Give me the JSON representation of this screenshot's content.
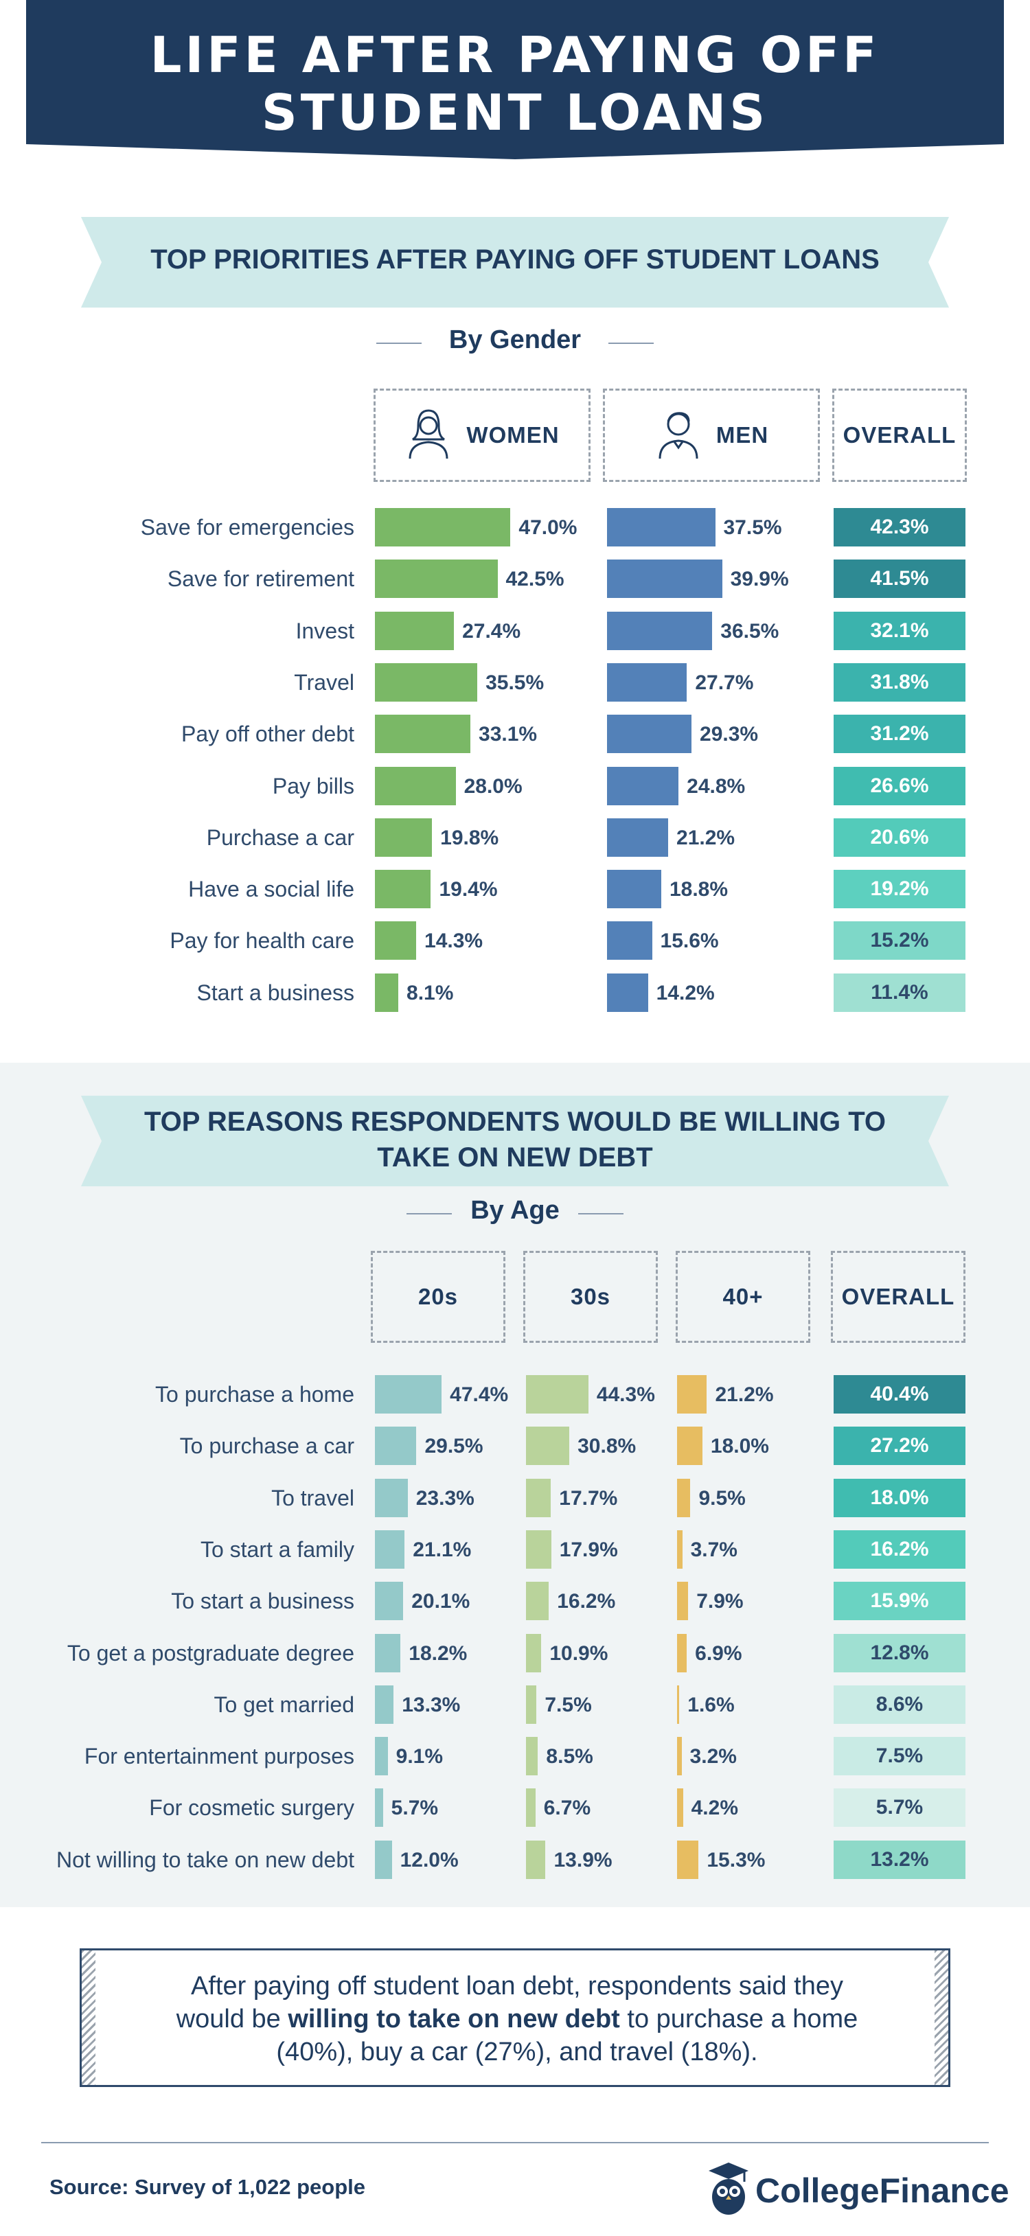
{
  "header": {
    "title": "LIFE AFTER PAYING OFF STUDENT LOANS"
  },
  "colors": {
    "navy": "#1f3b5e",
    "women": "#7ab866",
    "men": "#5381b8",
    "twenties": "#94c9c9",
    "thirties": "#b9d39b",
    "forties": "#e7bd61",
    "ribbon": "#cfeaea"
  },
  "section1": {
    "ribbon": "TOP PRIORITIES AFTER PAYING OFF STUDENT LOANS",
    "subtitle": "By Gender",
    "columns": {
      "women": "WOMEN",
      "men": "MEN",
      "overall": "OVERALL"
    }
  },
  "section2": {
    "ribbon_line1": "TOP REASONS RESPONDENTS WOULD BE WILLING TO",
    "ribbon_line2": "TAKE ON NEW DEBT",
    "subtitle": "By Age",
    "columns": {
      "twenties": "20s",
      "thirties": "30s",
      "forties": "40+",
      "overall": "OVERALL"
    }
  },
  "chart_data": [
    {
      "type": "bar",
      "title": "TOP PRIORITIES AFTER PAYING OFF STUDENT LOANS",
      "subtitle": "By Gender",
      "categories": [
        "Save for emergencies",
        "Save for retirement",
        "Invest",
        "Travel",
        "Pay off other debt",
        "Pay bills",
        "Purchase a car",
        "Have a social life",
        "Pay for health care",
        "Start a business"
      ],
      "series": [
        {
          "name": "WOMEN",
          "values": [
            47.0,
            42.5,
            27.4,
            35.5,
            33.1,
            28.0,
            19.8,
            19.4,
            14.3,
            8.1
          ],
          "labels": [
            "47.0%",
            "42.5%",
            "27.4%",
            "35.5%",
            "33.1%",
            "28.0%",
            "19.8%",
            "19.4%",
            "14.3%",
            "8.1%"
          ]
        },
        {
          "name": "MEN",
          "values": [
            37.5,
            39.9,
            36.5,
            27.7,
            29.3,
            24.8,
            21.2,
            18.8,
            15.6,
            14.2
          ],
          "labels": [
            "37.5%",
            "39.9%",
            "36.5%",
            "27.7%",
            "29.3%",
            "24.8%",
            "21.2%",
            "18.8%",
            "15.6%",
            "14.2%"
          ]
        },
        {
          "name": "OVERALL",
          "values": [
            42.3,
            41.5,
            32.1,
            31.8,
            31.2,
            26.6,
            20.6,
            19.2,
            15.2,
            11.4
          ],
          "labels": [
            "42.3%",
            "41.5%",
            "32.1%",
            "31.8%",
            "31.2%",
            "26.6%",
            "20.6%",
            "19.2%",
            "15.2%",
            "11.4%"
          ]
        }
      ],
      "overall_colors": [
        "#2e8a93",
        "#2e8a93",
        "#3bb3ad",
        "#3bb3ad",
        "#3bb3ad",
        "#40bcb0",
        "#53cbba",
        "#5dd0bf",
        "#7ed8c8",
        "#9fe0d2"
      ]
    },
    {
      "type": "bar",
      "title": "TOP REASONS RESPONDENTS WOULD BE WILLING TO TAKE ON NEW DEBT",
      "subtitle": "By Age",
      "categories": [
        "To purchase a home",
        "To purchase a car",
        "To travel",
        "To start a family",
        "To start a business",
        "To get a postgraduate degree",
        "To get married",
        "For entertainment purposes",
        "For cosmetic surgery",
        "Not willing to take on new debt"
      ],
      "series": [
        {
          "name": "20s",
          "values": [
            47.4,
            29.5,
            23.3,
            21.1,
            20.1,
            18.2,
            13.3,
            9.1,
            5.7,
            12.0
          ],
          "labels": [
            "47.4%",
            "29.5%",
            "23.3%",
            "21.1%",
            "20.1%",
            "18.2%",
            "13.3%",
            "9.1%",
            "5.7%",
            "12.0%"
          ]
        },
        {
          "name": "30s",
          "values": [
            44.3,
            30.8,
            17.7,
            17.9,
            16.2,
            10.9,
            7.5,
            8.5,
            6.7,
            13.9
          ],
          "labels": [
            "44.3%",
            "30.8%",
            "17.7%",
            "17.9%",
            "16.2%",
            "10.9%",
            "7.5%",
            "8.5%",
            "6.7%",
            "13.9%"
          ]
        },
        {
          "name": "40+",
          "values": [
            21.2,
            18.0,
            9.5,
            3.7,
            7.9,
            6.9,
            1.6,
            3.2,
            4.2,
            15.3
          ],
          "labels": [
            "21.2%",
            "18.0%",
            "9.5%",
            "3.7%",
            "7.9%",
            "6.9%",
            "1.6%",
            "3.2%",
            "4.2%",
            "15.3%"
          ]
        },
        {
          "name": "OVERALL",
          "values": [
            40.4,
            27.2,
            18.0,
            16.2,
            15.9,
            12.8,
            8.6,
            7.5,
            5.7,
            13.2
          ],
          "labels": [
            "40.4%",
            "27.2%",
            "18.0%",
            "16.2%",
            "15.9%",
            "12.8%",
            "8.6%",
            "7.5%",
            "5.7%",
            "13.2%"
          ]
        }
      ],
      "overall_colors": [
        "#2e8a93",
        "#3bb3ad",
        "#40bcb0",
        "#53cbba",
        "#6ad3c2",
        "#9fe0d2",
        "#c9ebe5",
        "#c9ebe5",
        "#d7efea",
        "#8ed9c8"
      ]
    }
  ],
  "callout": {
    "line1": "After paying off student loan debt, respondents said they",
    "line2_pre": "would be ",
    "line2_bold": "willing to take on new debt",
    "line2_post": " to purchase a home",
    "line3": "(40%), buy a car (27%), and travel (18%)."
  },
  "footer": {
    "source": "Source: Survey of 1,022 people",
    "brand": "CollegeFinance"
  }
}
